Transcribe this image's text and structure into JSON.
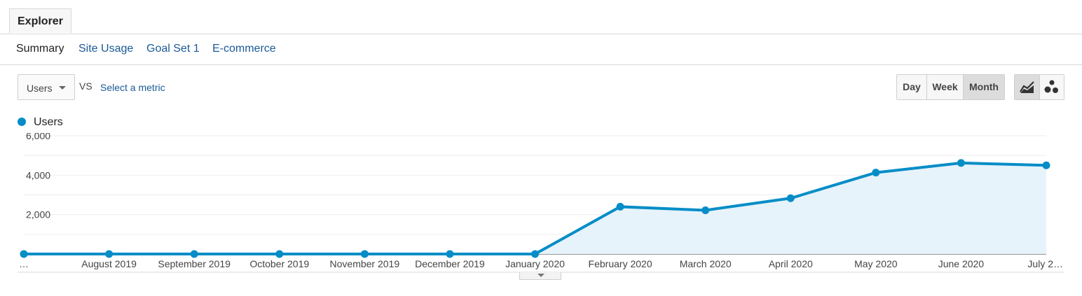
{
  "tabs": {
    "explorer": "Explorer"
  },
  "subnav": {
    "summary": "Summary",
    "site_usage": "Site Usage",
    "goal_set": "Goal Set 1",
    "ecommerce": "E-commerce"
  },
  "controls": {
    "metric": "Users",
    "vs": "VS",
    "select_metric": "Select a metric",
    "granularity": [
      "Day",
      "Week",
      "Month"
    ],
    "active_granularity": "Month",
    "chart_types": [
      "line-chart-icon",
      "motion-chart-icon"
    ],
    "active_chart_type": "line-chart-icon"
  },
  "legend": {
    "label": "Users",
    "color": "#058dc7"
  },
  "chart_data": {
    "type": "area",
    "x": [
      "…",
      "August 2019",
      "September 2019",
      "October 2019",
      "November 2019",
      "December 2019",
      "January 2020",
      "February 2020",
      "March 2020",
      "April 2020",
      "May 2020",
      "June 2020",
      "July 2…"
    ],
    "series": [
      {
        "name": "Users",
        "values": [
          0,
          0,
          0,
          0,
          0,
          0,
          0,
          2400,
          2220,
          2830,
          4130,
          4620,
          4500
        ]
      }
    ],
    "ylim": [
      0,
      6000
    ],
    "yticks": [
      {
        "value": 2000,
        "label": "2,000"
      },
      {
        "value": 4000,
        "label": "4,000"
      },
      {
        "value": 6000,
        "label": "6,000"
      }
    ],
    "line_color": "#058dc7",
    "fill_color": "#e6f3fa",
    "grid": true
  }
}
